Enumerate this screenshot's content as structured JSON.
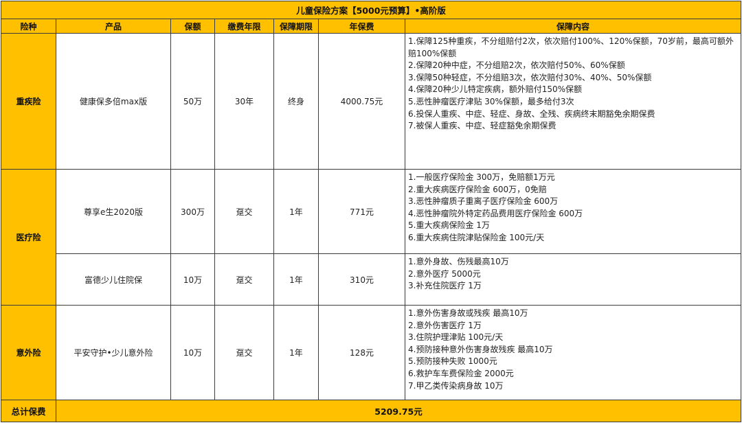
{
  "title": "儿童保险方案【5000元预算】•高阶版",
  "colors": {
    "header_bg": "#FFC000",
    "border": "#3a3a3a"
  },
  "headers": [
    "险种",
    "产品",
    "保额",
    "缴费年限",
    "保障期限",
    "年保费",
    "保障内容"
  ],
  "rows": [
    {
      "category": "重疾险",
      "product": "健康保多倍max版",
      "amount": "50万",
      "pay_years": "30年",
      "term": "终身",
      "premium": "4000.75元",
      "coverage": [
        "1.保障125种重疾，不分组赔付2次，依次赔付100%、120%保额，70岁前，最高可额外赔100%保额",
        "2.保障20种中症，不分组赔2次，依次赔付50%、60%保额",
        "3.保障50种轻症，不分组赔3次，依次赔付30%、40%、50%保额",
        "4.保障20种少儿特定疾病，额外赔付150%保额",
        "5.恶性肿瘤医疗津贴 30%保额，最多给付3次",
        "6.投保人重疾、中症、轻症、身故、全残、疾病终末期豁免余期保费",
        "7.被保人重疾、中症、轻症豁免余期保费"
      ]
    },
    {
      "category": "医疗险",
      "product": "尊享e生2020版",
      "amount": "300万",
      "pay_years": "趸交",
      "term": "1年",
      "premium": "771元",
      "coverage": [
        "1.一般医疗保险金 300万，免赔额1万元",
        "2.重大疾病医疗保险金 600万，0免赔",
        "3.恶性肿瘤质子重离子医疗保险金  600万",
        "4.恶性肿瘤院外特定药品费用医疗保险金  600万",
        "5.重大疾病保险金 1万",
        "6.重大疾病住院津贴保险金 100元/天"
      ]
    },
    {
      "product": "富德少儿住院保",
      "amount": "10万",
      "pay_years": "趸交",
      "term": "1年",
      "premium": "310元",
      "coverage": [
        "1.意外身故、伤残最高10万",
        "2.意外医疗 5000元",
        "3.补充住院医疗 1万"
      ]
    },
    {
      "category": "意外险",
      "product": "平安守护•少儿意外险",
      "amount": "10万",
      "pay_years": "趸交",
      "term": "1年",
      "premium": "128元",
      "coverage": [
        "1.意外伤害身故或残疾 最高10万",
        "2.意外伤害医疗 1万",
        "3.住院护理津贴 100元/天",
        "4.预防接种意外伤害身故残疾  最高10万",
        "5.预防接种失败 1000元",
        "6.救护车车费保险金 2000元",
        "7.甲乙类传染病身故 10万"
      ]
    }
  ],
  "total": {
    "label": "总计保费",
    "value": "5209.75元"
  }
}
